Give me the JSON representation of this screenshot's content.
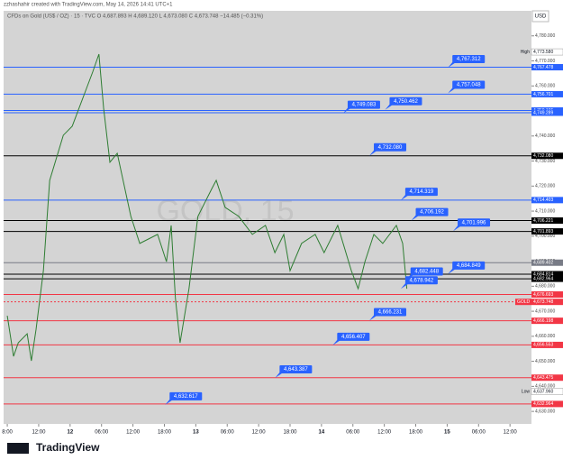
{
  "header": {
    "credit": "zzhashahir created with TradingView.com, May 14, 2026 14:41 UTC+1",
    "legend": "CFDs on Gold (US$ / OZ) · 15 · TVC  O 4,687.893  H 4,689.120  L 4,673.080  C 4,673.748  −14.485 (−0.31%)",
    "currency": "USD"
  },
  "footer": {
    "brand": "TradingView"
  },
  "chart_data": {
    "type": "line",
    "watermark": "GOLD, 15",
    "x": [
      0,
      1.2,
      2.1,
      3.8,
      4.6,
      5.5,
      6.9,
      8.1,
      10.7,
      12.4,
      15,
      16.3,
      17.5,
      18.4,
      19.6,
      21,
      23.6,
      25.3,
      28.7,
      30.4,
      31.3,
      32.1,
      33,
      34.7,
      36.4,
      39,
      39.9,
      41.6,
      44.2,
      46.8,
      49.3,
      51.1,
      52.8,
      54,
      56.2,
      58.8,
      60.5,
      63.1,
      65.7,
      67,
      68.3,
      70,
      71.7,
      74.3,
      75.5,
      76.3
    ],
    "series": [
      {
        "name": "GOLD",
        "color": "#2e7d32",
        "values": [
          4668.2,
          4652.0,
          4657.4,
          4661.0,
          4650.2,
          4662.8,
          4686.2,
          4722.3,
          4740.3,
          4743.9,
          4758.3,
          4765.5,
          4772.7,
          4751.1,
          4729.5,
          4733.1,
          4707.9,
          4697.1,
          4700.7,
          4689.8,
          4704.3,
          4675.4,
          4657.4,
          4679.0,
          4707.9,
          4718.7,
          4722.3,
          4711.5,
          4707.9,
          4700.7,
          4704.3,
          4693.4,
          4700.7,
          4686.2,
          4697.1,
          4700.7,
          4693.4,
          4704.3,
          4686.2,
          4679.0,
          4689.8,
          4700.7,
          4697.1,
          4704.3,
          4697.1,
          4679.0
        ]
      }
    ],
    "xlim": [
      -0.7,
      100.1
    ],
    "xticks": [
      {
        "value": 0,
        "label": "8:00"
      },
      {
        "value": 6,
        "label": "12:00"
      },
      {
        "value": 12,
        "label": "12"
      },
      {
        "value": 18,
        "label": "06:00"
      },
      {
        "value": 24,
        "label": "12:00"
      },
      {
        "value": 30,
        "label": "18:00"
      },
      {
        "value": 36,
        "label": "13"
      },
      {
        "value": 42,
        "label": "06:00"
      },
      {
        "value": 48,
        "label": "12:00"
      },
      {
        "value": 54,
        "label": "18:00"
      },
      {
        "value": 60,
        "label": "14"
      },
      {
        "value": 66,
        "label": "06:00"
      },
      {
        "value": 72,
        "label": "12:00"
      },
      {
        "value": 78,
        "label": "18:00"
      },
      {
        "value": 84,
        "label": "15"
      },
      {
        "value": 90,
        "label": "06:00"
      },
      {
        "value": 96,
        "label": "12:00"
      }
    ],
    "ylim": [
      4625,
      4790
    ],
    "yticks": [
      {
        "value": 4630,
        "label": "4,630.000"
      },
      {
        "value": 4640,
        "label": "4,640.000"
      },
      {
        "value": 4650,
        "label": "4,650.000"
      },
      {
        "value": 4660,
        "label": "4,660.000"
      },
      {
        "value": 4670,
        "label": "4,670.000"
      },
      {
        "value": 4680,
        "label": "4,680.000"
      },
      {
        "value": 4690,
        "label": "4,690.000"
      },
      {
        "value": 4700,
        "label": "4,700.000"
      },
      {
        "value": 4710,
        "label": "4,710.000"
      },
      {
        "value": 4720,
        "label": "4,720.000"
      },
      {
        "value": 4730,
        "label": "4,730.000"
      },
      {
        "value": 4740,
        "label": "4,740.000"
      },
      {
        "value": 4750,
        "label": "4,750.000"
      },
      {
        "value": 4760,
        "label": "4,760.000"
      },
      {
        "value": 4770,
        "label": "4,770.000"
      },
      {
        "value": 4780,
        "label": "4,780.000"
      }
    ],
    "levels": [
      {
        "value": 4767.478,
        "label": "4,767.478",
        "color": "#2962ff"
      },
      {
        "value": 4756.701,
        "label": "4,756.701",
        "color": "#2962ff"
      },
      {
        "value": 4750.195,
        "label": "4,750.195",
        "color": "#2962ff"
      },
      {
        "value": 4749.289,
        "label": "4,749.289",
        "color": "#2962ff"
      },
      {
        "value": 4732.08,
        "label": "4,732.080",
        "color": "#000000"
      },
      {
        "value": 4714.403,
        "label": "4,714.403",
        "color": "#2962ff"
      },
      {
        "value": 4706.221,
        "label": "4,706.221",
        "color": "#000000"
      },
      {
        "value": 4701.893,
        "label": "4,701.893",
        "color": "#000000"
      },
      {
        "value": 4689.402,
        "label": "4,689.402",
        "color": "#787b86"
      },
      {
        "value": 4684.814,
        "label": "4,684.814",
        "color": "#000000"
      },
      {
        "value": 4682.964,
        "label": "4,682.964",
        "color": "#000000"
      },
      {
        "value": 4676.693,
        "label": "4,676.693",
        "color": "#f23645"
      },
      {
        "value": 4666.198,
        "label": "4,666.198",
        "color": "#f23645"
      },
      {
        "value": 4656.553,
        "label": "4,656.553",
        "color": "#f23645"
      },
      {
        "value": 4643.475,
        "label": "4,643.475",
        "color": "#f23645"
      },
      {
        "value": 4632.964,
        "label": "4,632.964",
        "color": "#f23645"
      }
    ],
    "current": {
      "value": 4673.748,
      "label": "4,673.748",
      "name": "GOLD",
      "color": "#f23645"
    },
    "high": {
      "name": "High",
      "value": 4773.58,
      "label": "4,773.580"
    },
    "low": {
      "name": "Low",
      "value": 4637.96,
      "label": "4,637.960"
    },
    "annotations": [
      {
        "x": 85,
        "value": 4767.312,
        "label": "4,767.312"
      },
      {
        "x": 85,
        "value": 4757.048,
        "label": "4,757.048"
      },
      {
        "x": 73,
        "value": 4750.462,
        "label": "4,750.462"
      },
      {
        "x": 65,
        "value": 4749.083,
        "label": "4,749.083"
      },
      {
        "x": 70,
        "value": 4732.08,
        "label": "4,732.080"
      },
      {
        "x": 76,
        "value": 4714.319,
        "label": "4,714.319"
      },
      {
        "x": 78,
        "value": 4706.192,
        "label": "4,706.192"
      },
      {
        "x": 86,
        "value": 4701.996,
        "label": "4,701.996"
      },
      {
        "x": 85,
        "value": 4684.849,
        "label": "4,684.849"
      },
      {
        "x": 77,
        "value": 4682.448,
        "label": "4,682.448"
      },
      {
        "x": 76,
        "value": 4678.942,
        "label": "4,678.942"
      },
      {
        "x": 70,
        "value": 4666.231,
        "label": "4,666.231"
      },
      {
        "x": 63,
        "value": 4656.407,
        "label": "4,656.407"
      },
      {
        "x": 52,
        "value": 4643.387,
        "label": "4,643.387"
      },
      {
        "x": 31,
        "value": 4632.617,
        "label": "4,632.617"
      }
    ]
  }
}
